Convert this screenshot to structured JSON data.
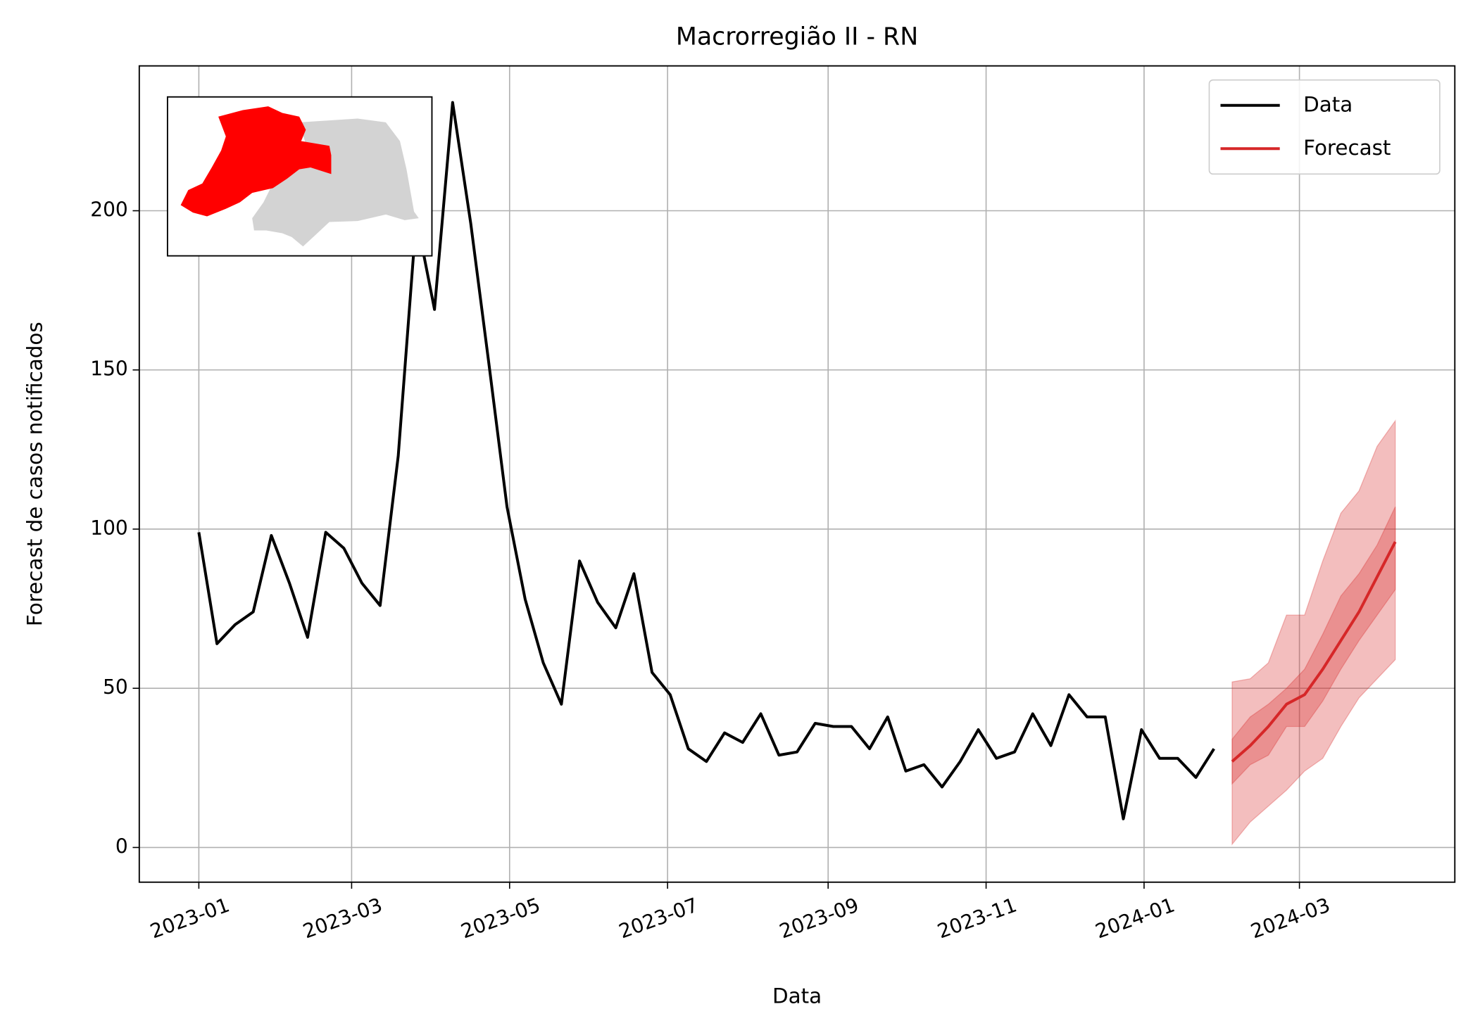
{
  "chart_data": {
    "type": "line",
    "title": "Macrorregião II - RN",
    "x_label": "Data",
    "y_label": "Forecast de casos notificados",
    "series": [
      {
        "name": "Data",
        "color": "#000000",
        "x": [
          "2023-01-01",
          "2023-01-08",
          "2023-01-15",
          "2023-01-22",
          "2023-01-29",
          "2023-02-05",
          "2023-02-12",
          "2023-02-19",
          "2023-02-26",
          "2023-03-05",
          "2023-03-12",
          "2023-03-19",
          "2023-03-26",
          "2023-04-02",
          "2023-04-09",
          "2023-04-16",
          "2023-04-23",
          "2023-04-30",
          "2023-05-07",
          "2023-05-14",
          "2023-05-21",
          "2023-05-28",
          "2023-06-04",
          "2023-06-11",
          "2023-06-18",
          "2023-06-25",
          "2023-07-02",
          "2023-07-09",
          "2023-07-16",
          "2023-07-23",
          "2023-07-30",
          "2023-08-06",
          "2023-08-13",
          "2023-08-20",
          "2023-08-27",
          "2023-09-03",
          "2023-09-10",
          "2023-09-17",
          "2023-09-24",
          "2023-10-01",
          "2023-10-08",
          "2023-10-15",
          "2023-10-22",
          "2023-10-29",
          "2023-11-05",
          "2023-11-12",
          "2023-11-19",
          "2023-11-26",
          "2023-12-03",
          "2023-12-10",
          "2023-12-17",
          "2023-12-24",
          "2023-12-31",
          "2024-01-07",
          "2024-01-14",
          "2024-01-21",
          "2024-01-28"
        ],
        "values": [
          99,
          64,
          70,
          74,
          98,
          83,
          66,
          99,
          94,
          83,
          76,
          123,
          198,
          169,
          234,
          196,
          152,
          107,
          78,
          58,
          45,
          90,
          77,
          69,
          86,
          55,
          48,
          31,
          27,
          36,
          33,
          42,
          29,
          30,
          39,
          38,
          38,
          31,
          41,
          24,
          26,
          19,
          27,
          37,
          28,
          30,
          42,
          32,
          48,
          41,
          41,
          9,
          37,
          28,
          28,
          22,
          31
        ]
      },
      {
        "name": "Forecast",
        "color": "#d62728",
        "x": [
          "2024-02-04",
          "2024-02-11",
          "2024-02-18",
          "2024-02-25",
          "2024-03-03",
          "2024-03-10",
          "2024-03-17",
          "2024-03-24",
          "2024-03-31",
          "2024-04-07"
        ],
        "values": [
          27,
          32,
          38,
          45,
          48,
          56,
          65,
          74,
          85,
          96
        ]
      }
    ],
    "bands": [
      {
        "color": "#d62728",
        "opacity": 0.3,
        "lower": [
          1,
          8,
          13,
          18,
          24,
          28,
          38,
          47,
          53,
          59
        ],
        "upper": [
          52,
          53,
          58,
          73,
          73,
          90,
          105,
          112,
          126,
          134
        ]
      },
      {
        "color": "#d62728",
        "opacity": 0.3,
        "lower": [
          20,
          26,
          29,
          38,
          38,
          46,
          56,
          65,
          73,
          81
        ],
        "upper": [
          34,
          41,
          45,
          50,
          56,
          67,
          79,
          86,
          95,
          107
        ]
      }
    ],
    "xlim": [
      "2022-12-09",
      "2024-04-30"
    ],
    "xticks": [
      "2023-01",
      "2023-03",
      "2023-05",
      "2023-07",
      "2023-09",
      "2023-11",
      "2024-01",
      "2024-03"
    ],
    "ylim": [
      -10.9,
      245.5
    ],
    "yticks": [
      0,
      50,
      100,
      150,
      200
    ],
    "grid": true,
    "legend": "upper right"
  }
}
